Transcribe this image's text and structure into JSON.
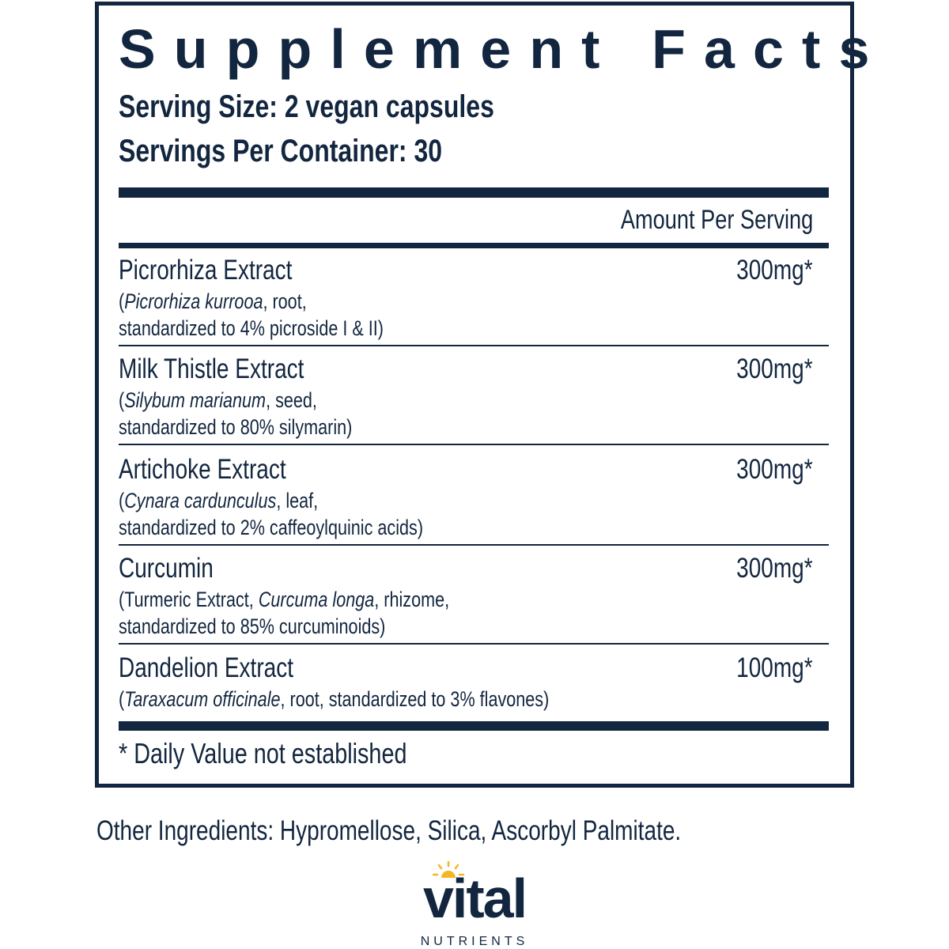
{
  "panel": {
    "title": "Supplement Facts",
    "serving_size": "Serving Size: 2 vegan capsules",
    "servings_per_container": "Servings Per Container: 30",
    "amount_header": "Amount Per Serving",
    "ingredients": [
      {
        "name": "Picrorhiza Extract",
        "pre": "(",
        "latin": "Picrorhiza kurrooa",
        "detail1": ", root,",
        "detail2": "standardized to 4% picroside I & II)",
        "amount": "300mg*"
      },
      {
        "name": "Milk Thistle Extract",
        "pre": "(",
        "latin": "Silybum marianum",
        "detail1": ", seed,",
        "detail2": "standardized to 80% silymarin)",
        "amount": "300mg*"
      },
      {
        "name": "Artichoke Extract",
        "pre": "(",
        "latin": "Cynara cardunculus",
        "detail1": ", leaf,",
        "detail2": "standardized to 2% caffeoylquinic acids)",
        "amount": "300mg*"
      },
      {
        "name": "Curcumin",
        "pre": "(Turmeric Extract, ",
        "latin": "Curcuma longa",
        "detail1": ", rhizome,",
        "detail2": "standardized to 85% curcuminoids)",
        "amount": "300mg*"
      },
      {
        "name": "Dandelion Extract",
        "pre": "(",
        "latin": "Taraxacum officinale",
        "detail1": ", root, standardized to 3% flavones)",
        "detail2": "",
        "amount": "100mg*"
      }
    ],
    "footnote": "* Daily Value not established"
  },
  "other_ingredients": "Other Ingredients: Hypromellose, Silica, Ascorbyl Palmitate.",
  "logo": {
    "word": "vital",
    "sub": "NUTRIENTS",
    "sun_color": "#f2b824"
  },
  "colors": {
    "ink": "#13263f"
  }
}
